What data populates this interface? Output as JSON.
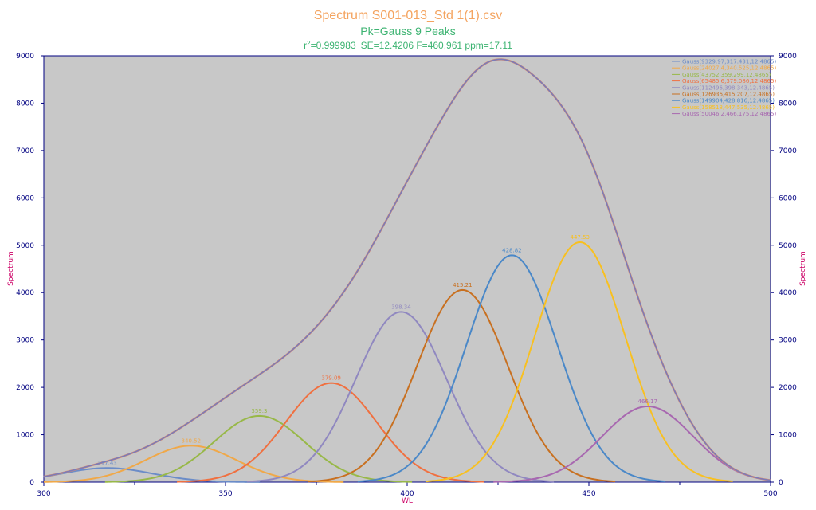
{
  "chart_data": {
    "type": "line",
    "title": "Spectrum S001-013_Std 1(1).csv",
    "subtitle": "Pk=Gauss  9 Peaks",
    "stats": {
      "r2_label": "r",
      "r2_sup": "2",
      "r2_value": "=0.999983",
      "rest": "SE=12.4206  F=460,961  ppm=17.11"
    },
    "xlabel": "WL",
    "ylabel_left": "Spectrum",
    "ylabel_right": "Spectrum",
    "xlim": [
      300,
      500
    ],
    "ylim": [
      0,
      9000
    ],
    "x_ticks": [
      "300",
      "350",
      "400",
      "450",
      "500"
    ],
    "x_tick_values": [
      300,
      350,
      400,
      450,
      500
    ],
    "y_ticks": [
      "0",
      "1000",
      "2000",
      "3000",
      "4000",
      "5000",
      "6000",
      "7000",
      "8000",
      "9000"
    ],
    "y_tick_values": [
      0,
      1000,
      2000,
      3000,
      4000,
      5000,
      6000,
      7000,
      8000,
      9000
    ],
    "legend_position": "top-right",
    "plot_background": "#c8c8c8",
    "sum_color": "#7b7bb8",
    "fit_color": "#e08f6a",
    "title_color": "#f4a460",
    "subtitle_color": "#3cb371",
    "stats_color": "#3cb371",
    "peak_width": 12.4865,
    "series": [
      {
        "name": "Gauss(9329.97,317.431,12.4865)",
        "area": 9329.97,
        "center": 317.431,
        "height": 298,
        "peak_label": "317.43",
        "color": "#6b8cc8"
      },
      {
        "name": "Gauss(24027.4,340.525,12.4865)",
        "area": 24027.4,
        "center": 340.525,
        "height": 768,
        "peak_label": "340.52",
        "color": "#f0a848"
      },
      {
        "name": "Gauss(43752,359.299,12.4865)",
        "area": 43752,
        "center": 359.299,
        "height": 1398,
        "peak_label": "359.3",
        "color": "#98b848"
      },
      {
        "name": "Gauss(65485.6,379.086,12.4865)",
        "area": 65485.6,
        "center": 379.086,
        "height": 2092,
        "peak_label": "379.09",
        "color": "#f07040"
      },
      {
        "name": "Gauss(112496,398.343,12.4865)",
        "area": 112496,
        "center": 398.343,
        "height": 3594,
        "peak_label": "398.34",
        "color": "#9088c0"
      },
      {
        "name": "Gauss(126936,415.207,12.4865)",
        "area": 126936,
        "center": 415.207,
        "height": 4056,
        "peak_label": "415.21",
        "color": "#c87020"
      },
      {
        "name": "Gauss(149904,428.816,12.4865)",
        "area": 149904,
        "center": 428.816,
        "height": 4789,
        "peak_label": "428.82",
        "color": "#4a88c8"
      },
      {
        "name": "Gauss(158518,447.535,12.4865)",
        "area": 158518,
        "center": 447.535,
        "height": 5065,
        "peak_label": "447.53",
        "color": "#f8c020"
      },
      {
        "name": "Gauss(50046.2,466.175,12.4865)",
        "area": 50046.2,
        "center": 466.175,
        "height": 1599,
        "peak_label": "466.17",
        "color": "#a868b0"
      }
    ],
    "sum_peak": {
      "x": 426.0,
      "y": 8930
    }
  }
}
